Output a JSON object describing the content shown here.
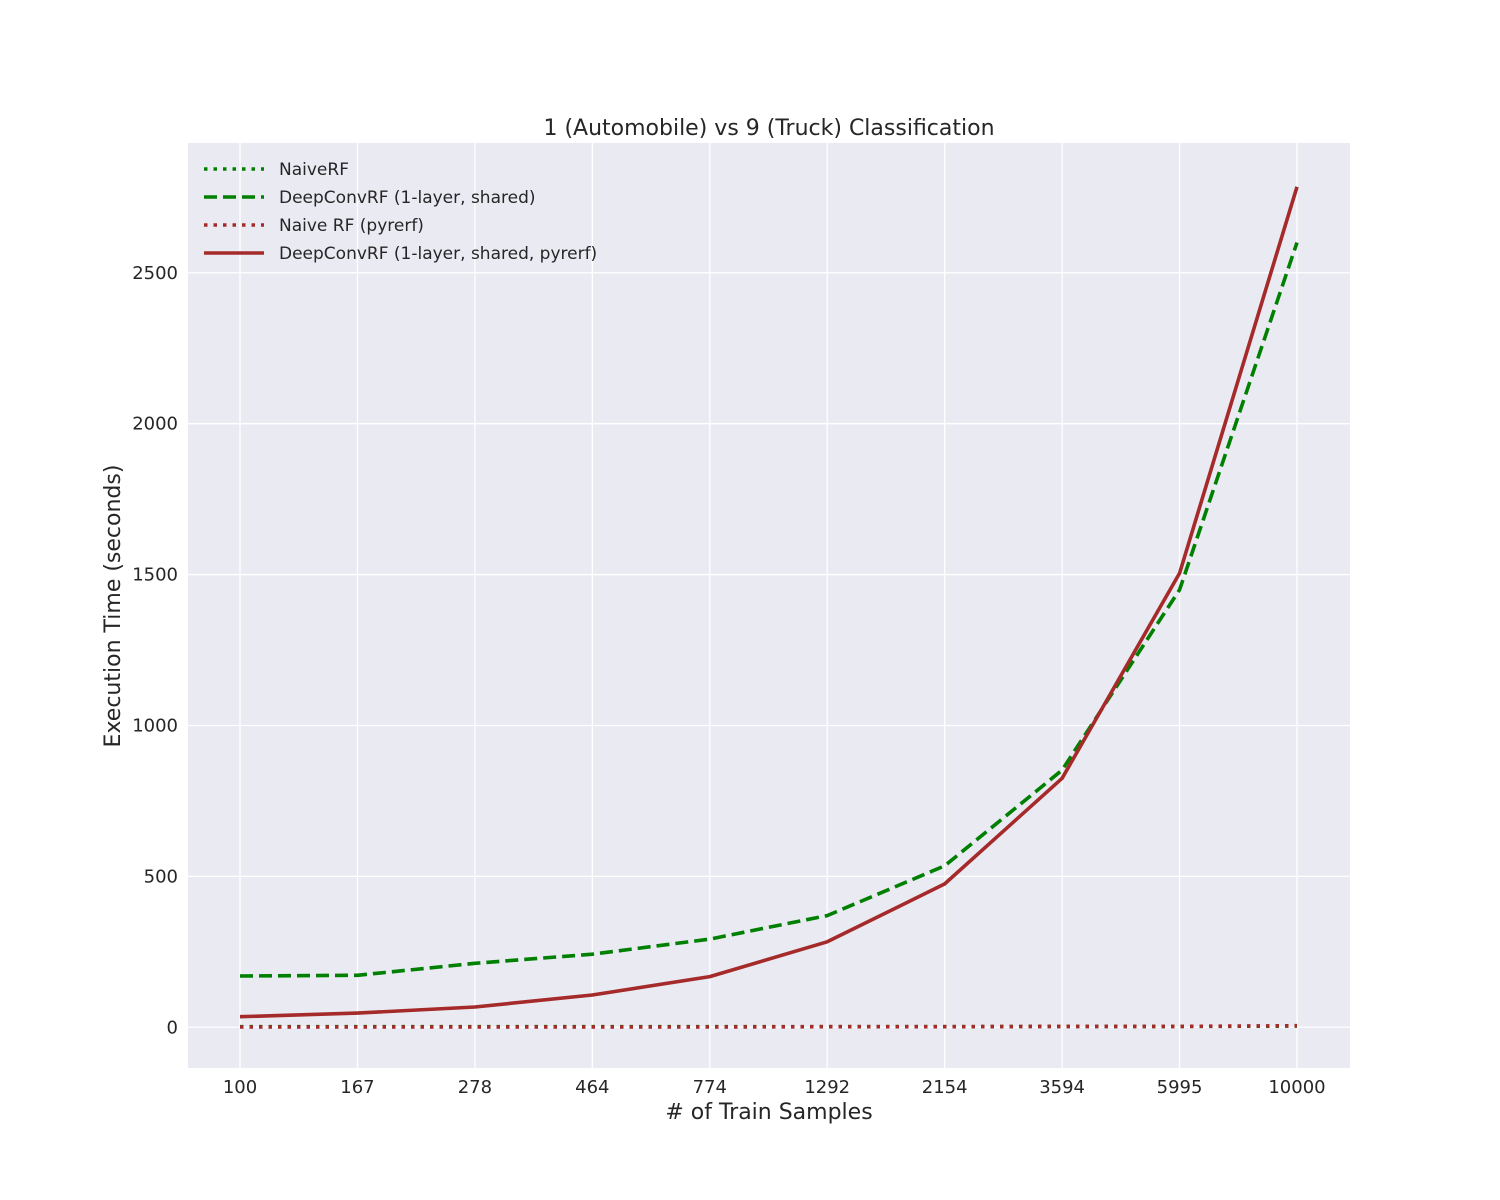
{
  "chart_data": {
    "type": "line",
    "title": "1 (Automobile) vs 9 (Truck) Classification",
    "xlabel": "# of Train Samples",
    "ylabel": "Execution Time (seconds)",
    "categories": [
      "100",
      "167",
      "278",
      "464",
      "774",
      "1292",
      "2154",
      "3594",
      "5995",
      "10000"
    ],
    "ylim": [
      -135,
      2930
    ],
    "yticks": [
      0,
      500,
      1000,
      1500,
      2000,
      2500
    ],
    "grid": true,
    "legend_position": "top-left",
    "background": "#eaeaf2",
    "series": [
      {
        "name": "NaiveRF",
        "color": "#008000",
        "style": "dotted",
        "values": [
          2,
          2,
          2,
          2,
          2,
          2,
          2,
          3,
          3,
          4
        ]
      },
      {
        "name": "DeepConvRF (1-layer, shared)",
        "color": "#008000",
        "style": "dashed",
        "values": [
          170,
          172,
          212,
          242,
          292,
          370,
          535,
          852,
          1450,
          2600
        ]
      },
      {
        "name": "Naive RF (pyrerf)",
        "color": "#a52a2a",
        "style": "dotted",
        "values": [
          1,
          1,
          1,
          1,
          1,
          2,
          2,
          3,
          3,
          5
        ]
      },
      {
        "name": "DeepConvRF (1-layer, shared, pyrerf)",
        "color": "#a52a2a",
        "style": "solid",
        "values": [
          35,
          47,
          67,
          107,
          168,
          283,
          475,
          825,
          1505,
          2785
        ]
      }
    ]
  }
}
